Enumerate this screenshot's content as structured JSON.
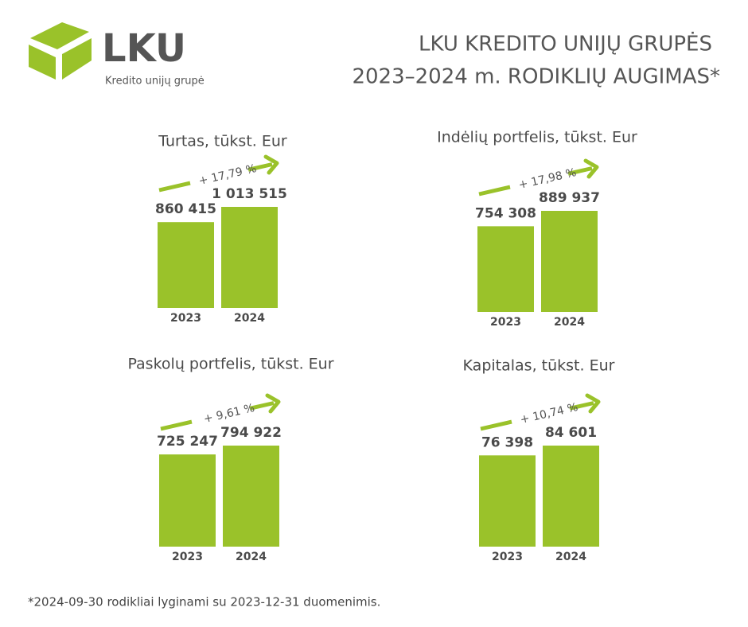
{
  "logo": {
    "name": "LKU",
    "subtitle": "Kredito unijų grupė"
  },
  "header": {
    "title": [
      "LKU KREDITO UNIJŲ GRUPĖS",
      "2023–2024 m. RODIKLIŲ AUGIMAS*"
    ]
  },
  "chart_data": [
    {
      "type": "bar",
      "title": "Turtas, tūkst. Eur",
      "categories": [
        "2023",
        "2024"
      ],
      "values": [
        860415,
        1013515
      ],
      "value_labels": [
        "860 415",
        "1 013 515"
      ],
      "annotation": "+ 17,79 %",
      "color": "#9ac22a"
    },
    {
      "type": "bar",
      "title": "Indėlių portfelis, tūkst. Eur",
      "categories": [
        "2023",
        "2024"
      ],
      "values": [
        754308,
        889937
      ],
      "value_labels": [
        "754 308",
        "889 937"
      ],
      "annotation": "+ 17,98 %",
      "color": "#9ac22a"
    },
    {
      "type": "bar",
      "title": "Paskolų portfelis, tūkst. Eur",
      "categories": [
        "2023",
        "2024"
      ],
      "values": [
        725247,
        794922
      ],
      "value_labels": [
        "725 247",
        "794 922"
      ],
      "annotation": "+ 9,61 %",
      "color": "#9ac22a"
    },
    {
      "type": "bar",
      "title": "Kapitalas, tūkst. Eur",
      "categories": [
        "2023",
        "2024"
      ],
      "values": [
        76398,
        84601
      ],
      "value_labels": [
        "76 398",
        "84 601"
      ],
      "annotation": "+ 10,74 %",
      "color": "#9ac22a"
    }
  ],
  "footnote": "*2024-09-30 rodikliai lyginami su 2023-12-31 duomenimis."
}
